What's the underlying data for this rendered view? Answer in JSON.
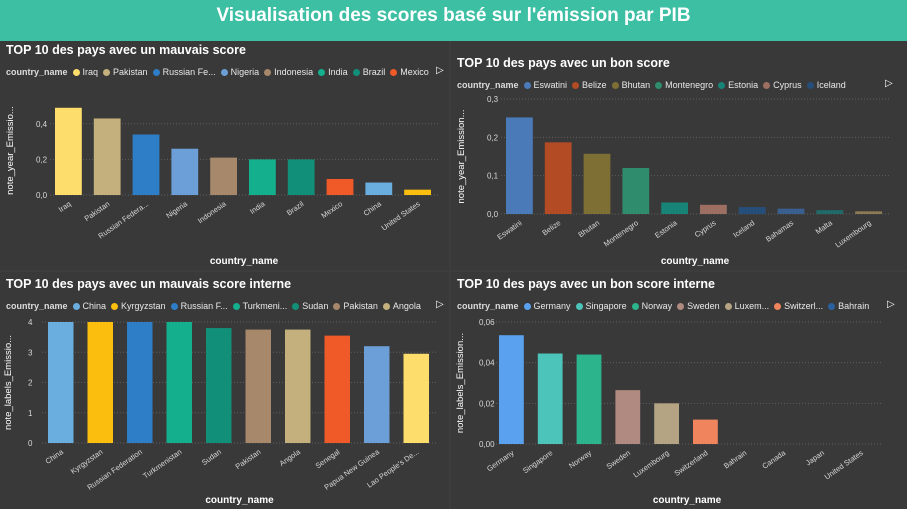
{
  "title": "Visualisation des scores basé sur l'émission par PIB",
  "legend_title": "country_name",
  "chart_data": [
    {
      "type": "bar",
      "title": "TOP 10 des pays avec un mauvais score",
      "xlabel": "country_name",
      "ylabel": "note_year_Emissio...",
      "ylim": [
        0,
        0.5
      ],
      "yticks": [
        "0,0",
        "0,2",
        "0,4"
      ],
      "ytick_values": [
        0,
        0.2,
        0.4
      ],
      "legend": [
        "Iraq",
        "Pakistan",
        "Russian Fe...",
        "Nigeria",
        "Indonesia",
        "India",
        "Brazil",
        "Mexico"
      ],
      "categories": [
        "Iraq",
        "Pakistan",
        "Russian Federa...",
        "Nigeria",
        "Indonesia",
        "India",
        "Brazil",
        "Mexico",
        "China",
        "United States"
      ],
      "values": [
        0.49,
        0.43,
        0.34,
        0.26,
        0.21,
        0.2,
        0.2,
        0.09,
        0.07,
        0.03
      ],
      "colors": [
        "#fddd6c",
        "#c4b07c",
        "#2e7dc7",
        "#6c9fd8",
        "#a7886a",
        "#14b08e",
        "#128f78",
        "#f05a28",
        "#6aaee0",
        "#fbbe0f"
      ]
    },
    {
      "type": "bar",
      "title": "TOP 10 des pays avec un bon score",
      "xlabel": "country_name",
      "ylabel": "note_year_Emission...",
      "ylim": [
        0,
        0.3
      ],
      "yticks": [
        "0,0",
        "0,1",
        "0,2",
        "0,3"
      ],
      "ytick_values": [
        0,
        0.1,
        0.2,
        0.3
      ],
      "legend": [
        "Eswatini",
        "Belize",
        "Bhutan",
        "Montenegro",
        "Estonia",
        "Cyprus",
        "Iceland"
      ],
      "categories": [
        "Eswatini",
        "Belize",
        "Bhutan",
        "Montenegro",
        "Estonia",
        "Cyprus",
        "Iceland",
        "Bahamas",
        "Malta",
        "Luxembourg"
      ],
      "values": [
        0.252,
        0.187,
        0.157,
        0.12,
        0.03,
        0.024,
        0.018,
        0.014,
        0.01,
        0.007
      ],
      "colors": [
        "#4a7bb8",
        "#b34b24",
        "#7e6f35",
        "#2f8c6c",
        "#178477",
        "#9c6f62",
        "#264e7a",
        "#3a5e8e",
        "#206a6a",
        "#8d7a55"
      ]
    },
    {
      "type": "bar",
      "title": "TOP 10 des pays avec un mauvais score interne",
      "xlabel": "country_name",
      "ylabel": "note_labels_Emissio...",
      "ylim": [
        0,
        4
      ],
      "yticks": [
        "0",
        "1",
        "2",
        "3",
        "4"
      ],
      "ytick_values": [
        0,
        1,
        2,
        3,
        4
      ],
      "legend": [
        "China",
        "Kyrgyzstan",
        "Russian F...",
        "Turkmeni...",
        "Sudan",
        "Pakistan",
        "Angola"
      ],
      "categories": [
        "China",
        "Kyrgyzstan",
        "Russian Federation",
        "Turkmenistan",
        "Sudan",
        "Pakistan",
        "Angola",
        "Senegal",
        "Papua New Guinea",
        "Lao People's De..."
      ],
      "values": [
        4.0,
        4.0,
        4.0,
        4.0,
        3.8,
        3.75,
        3.75,
        3.55,
        3.2,
        2.95
      ],
      "colors": [
        "#6aaee0",
        "#fbbe0f",
        "#2e7dc7",
        "#14b08e",
        "#128f78",
        "#a7886a",
        "#c4b07c",
        "#f05a28",
        "#6c9fd8",
        "#fddd6c"
      ]
    },
    {
      "type": "bar",
      "title": "TOP 10 des pays avec un bon score interne",
      "xlabel": "country_name",
      "ylabel": "note_labels_Emission...",
      "ylim": [
        0,
        0.06
      ],
      "yticks": [
        "0,00",
        "0,02",
        "0,04",
        "0,06"
      ],
      "ytick_values": [
        0,
        0.02,
        0.04,
        0.06
      ],
      "legend": [
        "Germany",
        "Singapore",
        "Norway",
        "Sweden",
        "Luxem...",
        "Switzerl...",
        "Bahrain"
      ],
      "categories": [
        "Germany",
        "Singapore",
        "Norway",
        "Sweden",
        "Luxembourg",
        "Switzerland",
        "Bahrain",
        "Canada",
        "Japan",
        "United States"
      ],
      "values": [
        0.0535,
        0.0445,
        0.044,
        0.0265,
        0.02,
        0.012,
        0,
        0,
        0,
        0
      ],
      "colors": [
        "#5aa2f0",
        "#4cc4ba",
        "#2cb48c",
        "#b08a80",
        "#b5a484",
        "#f0845c",
        "#2a5fa0",
        "#2a5fa0",
        "#2a5fa0",
        "#2a5fa0"
      ]
    }
  ]
}
